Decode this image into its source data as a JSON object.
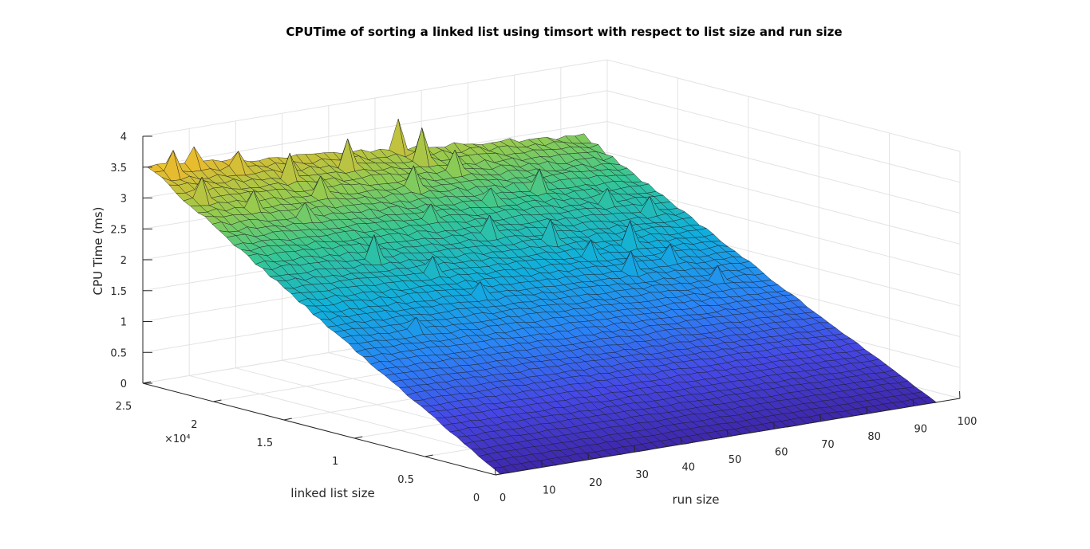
{
  "chart_data": {
    "type": "surface",
    "title": "CPUTime of sorting a linked list using timsort with respect to list size and run size",
    "xlabel": "run size",
    "ylabel": "linked list size",
    "zlabel": "CPU Time (ms)",
    "x_ticks": [
      "0",
      "10",
      "20",
      "30",
      "40",
      "50",
      "60",
      "70",
      "80",
      "90",
      "100"
    ],
    "y_ticks": [
      "0",
      "0.5",
      "1",
      "1.5",
      "2",
      "2.5"
    ],
    "y_exponent_label": "×10⁴",
    "z_ticks": [
      "0",
      "0.5",
      "1",
      "1.5",
      "2",
      "2.5",
      "3",
      "3.5",
      "4"
    ],
    "xlim": [
      0,
      100
    ],
    "ylim": [
      0,
      25000
    ],
    "zlim": [
      0,
      4
    ],
    "grid": true,
    "colormap": "parula",
    "run_size_range": [
      1,
      95
    ],
    "list_size_range": [
      0,
      25000
    ],
    "approx_values": [
      {
        "run_size": 1,
        "list_size": 0,
        "cpu_time_ms": 0.0
      },
      {
        "run_size": 1,
        "list_size": 25000,
        "cpu_time_ms": 3.5
      },
      {
        "run_size": 50,
        "list_size": 25000,
        "cpu_time_ms": 3.0
      },
      {
        "run_size": 95,
        "list_size": 25000,
        "cpu_time_ms": 2.85
      },
      {
        "run_size": 95,
        "list_size": 0,
        "cpu_time_ms": 0.0
      }
    ]
  }
}
